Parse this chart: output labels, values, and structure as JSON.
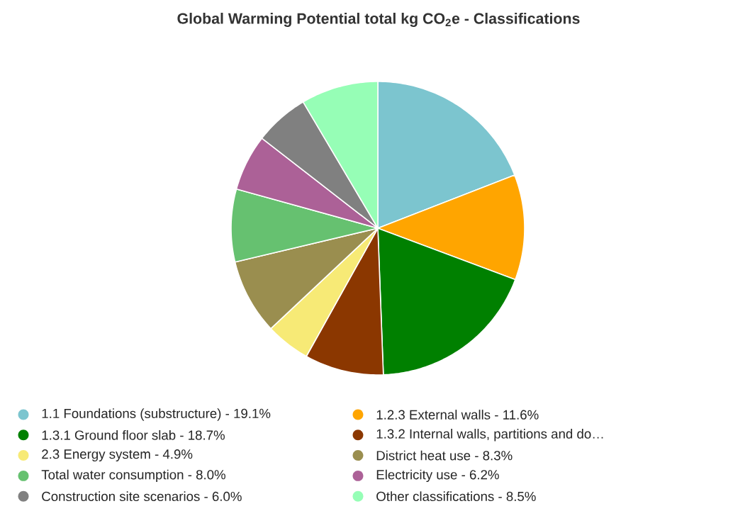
{
  "chart_data": {
    "type": "pie",
    "title": "Global Warming Potential total kg CO$_{2}$e - Classifications",
    "categories": [
      "1.1 Foundations (substructure) - 19.1%",
      "1.2.3 External walls - 11.6%",
      "1.3.1 Ground floor slab - 18.7%",
      "1.3.2 Internal walls, partitions and do…",
      "2.3 Energy system - 4.9%",
      "District heat use - 8.3%",
      "Total water consumption - 8.0%",
      "Electricity use - 6.2%",
      "Construction site scenarios - 6.0%",
      "Other classifications - 8.5%"
    ],
    "values": [
      19.1,
      11.6,
      18.7,
      8.7,
      4.9,
      8.3,
      8.0,
      6.2,
      6.0,
      8.5
    ],
    "colors": [
      "#7cc5cf",
      "#ffa500",
      "#008000",
      "#8b3700",
      "#f7ea76",
      "#9a8e4f",
      "#66c170",
      "#ac6197",
      "#808080",
      "#96feb6"
    ],
    "legend": "bottom"
  }
}
